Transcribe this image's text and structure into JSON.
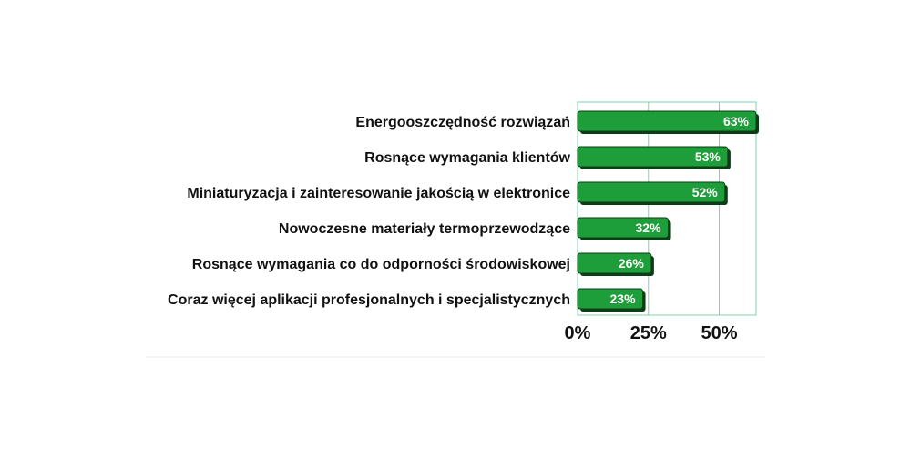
{
  "chart_data": {
    "type": "bar",
    "orientation": "horizontal",
    "categories": [
      "Energooszczędność rozwiązań",
      "Rosnące wymagania klientów",
      "Miniaturyzacja i zainteresowanie jakością w elektronice",
      "Nowoczesne materiały termoprzewodzące",
      "Rosnące wymagania co do odporności środowiskowej",
      "Coraz więcej aplikacji profesjonalnych i specjalistycznych"
    ],
    "values": [
      63,
      53,
      52,
      32,
      26,
      23
    ],
    "data_labels": [
      "63%",
      "53%",
      "52%",
      "32%",
      "26%",
      "23%"
    ],
    "xlim": [
      0,
      63
    ],
    "x_ticks": [
      0,
      25,
      50
    ],
    "x_tick_labels": [
      "0%",
      "25%",
      "50%"
    ],
    "grid": true,
    "legend": "none",
    "bar_color": "#1e9e3a",
    "bar_edge_color": "#0d3d17",
    "grid_color": "#7fd3a8"
  }
}
